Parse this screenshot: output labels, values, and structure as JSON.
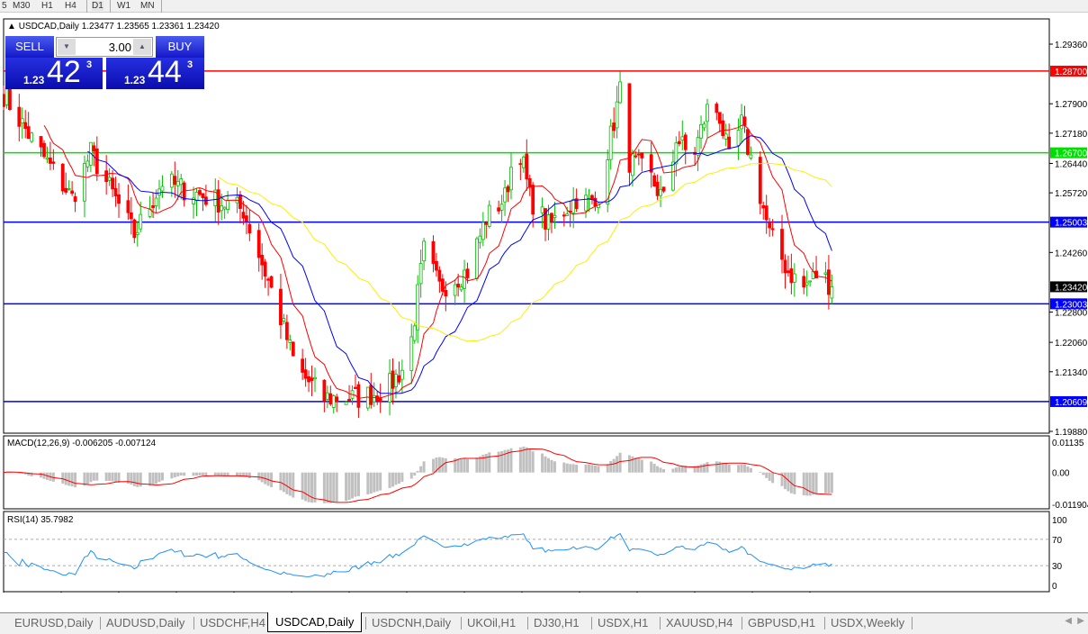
{
  "timeframes": [
    "5",
    "M30",
    "H1",
    "H4",
    "D1",
    "W1",
    "MN"
  ],
  "active_timeframe": "D1",
  "chart": {
    "symbol_title": "USDCAD,Daily",
    "ohlc": "1.23477 1.23565 1.23361 1.23420",
    "current_price": "1.23420",
    "price_axis": [
      "1.29360",
      "1.27900",
      "1.27180",
      "1.26440",
      "1.25720",
      "1.24260",
      "1.22800",
      "1.22060",
      "1.21340",
      "1.19880"
    ],
    "price_range": [
      1.1988,
      1.2936
    ],
    "levels": [
      {
        "price": "1.28700",
        "color": "#ff0000"
      },
      {
        "price": "1.26700",
        "color": "#00e000"
      },
      {
        "price": "1.25003",
        "color": "#0000ff"
      },
      {
        "price": "1.23003",
        "color": "#0000ff"
      },
      {
        "price": "1.20609",
        "color": "#0000ff"
      }
    ],
    "date_axis": [
      "3 Feb 2021",
      "22 Feb 2021",
      "12 Mar 2021",
      "31 Mar 2021",
      "19 Apr 2021",
      "7 May 2021",
      "26 May 2021",
      "14 Jun 2021",
      "2 Jul 2021",
      "21 Jul 2021",
      "9 Aug 2021",
      "27 Aug 2021",
      "15 Sep 2021",
      "4 Oct 2021",
      "22 Oct 2021"
    ],
    "ma_colors": {
      "fast": "#ff0000",
      "mid": "#0000ff",
      "slow": "#ffee00"
    },
    "candle_colors": {
      "up": "#00c000",
      "down": "#ff0000"
    }
  },
  "chart_data": {
    "type": "candlestick",
    "approx_close_path": [
      [
        "2021-02-03",
        1.2813
      ],
      [
        "2021-02-13",
        1.2691
      ],
      [
        "2021-02-25",
        1.2559
      ],
      [
        "2021-03-03",
        1.267
      ],
      [
        "2021-03-17",
        1.247
      ],
      [
        "2021-03-26",
        1.26
      ],
      [
        "2021-04-06",
        1.257
      ],
      [
        "2021-04-21",
        1.253
      ],
      [
        "2021-04-27",
        1.24
      ],
      [
        "2021-05-02",
        1.229
      ],
      [
        "2021-05-08",
        1.214
      ],
      [
        "2021-05-17",
        1.207
      ],
      [
        "2021-05-28",
        1.207
      ],
      [
        "2021-06-06",
        1.209
      ],
      [
        "2021-06-13",
        1.216
      ],
      [
        "2021-06-18",
        1.243
      ],
      [
        "2021-06-23",
        1.234
      ],
      [
        "2021-07-02",
        1.238
      ],
      [
        "2021-07-08",
        1.251
      ],
      [
        "2021-07-14",
        1.256
      ],
      [
        "2021-07-18",
        1.271
      ],
      [
        "2021-07-22",
        1.256
      ],
      [
        "2021-07-28",
        1.249
      ],
      [
        "2021-08-06",
        1.256
      ],
      [
        "2021-08-12",
        1.254
      ],
      [
        "2021-08-17",
        1.271
      ],
      [
        "2021-08-20",
        1.282
      ],
      [
        "2021-08-23",
        1.265
      ],
      [
        "2021-08-29",
        1.262
      ],
      [
        "2021-09-04",
        1.254
      ],
      [
        "2021-09-07",
        1.271
      ],
      [
        "2021-09-12",
        1.265
      ],
      [
        "2021-09-18",
        1.28
      ],
      [
        "2021-09-21",
        1.276
      ],
      [
        "2021-09-24",
        1.265
      ],
      [
        "2021-09-28",
        1.274
      ],
      [
        "2021-10-03",
        1.26
      ],
      [
        "2021-10-07",
        1.247
      ],
      [
        "2021-10-13",
        1.238
      ],
      [
        "2021-10-18",
        1.234
      ],
      [
        "2021-10-23",
        1.238
      ],
      [
        "2021-10-27",
        1.2342
      ]
    ]
  },
  "macd": {
    "label": "MACD(12,26,9) -0.006205 -0.007124",
    "axis": [
      "0.01135",
      "0.00",
      "-0.011904"
    ],
    "range": [
      -0.011904,
      0.01135
    ],
    "signal_color": "#ff0000",
    "hist_color": "#c0c0c0"
  },
  "rsi": {
    "label": "RSI(14) 35.7982",
    "axis": [
      "100",
      "70",
      "30",
      "0"
    ],
    "line_color": "#1e90ff"
  },
  "trade_panel": {
    "sell": "SELL",
    "buy": "BUY",
    "volume": "3.00",
    "bid_prefix": "1.23",
    "bid_digits": "42",
    "bid_sup": "3",
    "ask_prefix": "1.23",
    "ask_digits": "44",
    "ask_sup": "3"
  },
  "tabs": [
    "EURUSD,Daily",
    "AUDUSD,Daily",
    "USDCHF,H4",
    "USDCAD,Daily",
    "USDCNH,Daily",
    "UKOil,H1",
    "DJ30,H1",
    "USDX,H1",
    "XAUUSD,H4",
    "GBPUSD,H1",
    "USDX,Weekly"
  ],
  "active_tab": "USDCAD,Daily"
}
